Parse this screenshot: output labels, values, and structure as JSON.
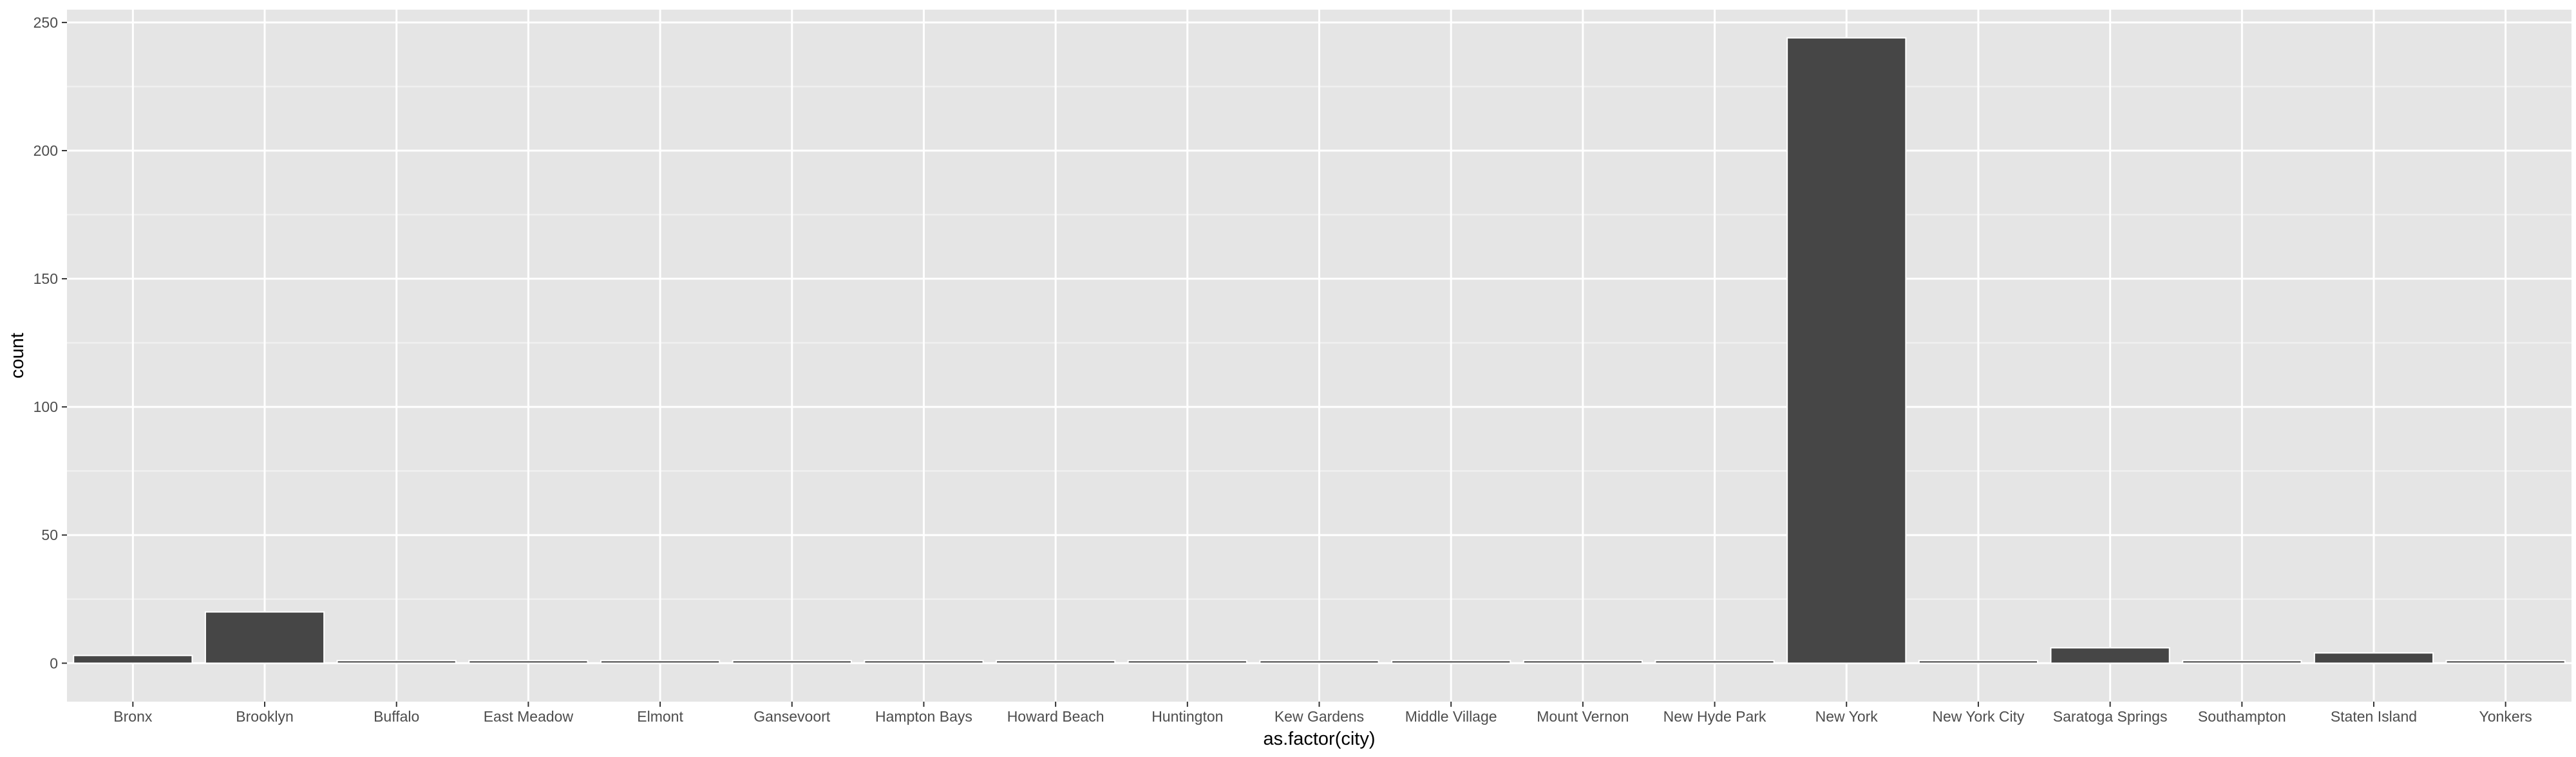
{
  "chart_data": {
    "type": "bar",
    "xlabel": "as.factor(city)",
    "ylabel": "count",
    "ylim": [
      -15,
      255
    ],
    "yticks": [
      0,
      50,
      100,
      150,
      200,
      250
    ],
    "grid": true,
    "categories": [
      "Bronx",
      "Brooklyn",
      "Buffalo",
      "East Meadow",
      "Elmont",
      "Gansevoort",
      "Hampton Bays",
      "Howard Beach",
      "Huntington",
      "Kew Gardens",
      "Middle Village",
      "Mount Vernon",
      "New Hyde Park",
      "New York",
      "New York City",
      "Saratoga Springs",
      "Southampton",
      "Staten Island",
      "Yonkers"
    ],
    "values": [
      3,
      20,
      1,
      1,
      1,
      1,
      1,
      1,
      1,
      1,
      1,
      1,
      1,
      244,
      1,
      6,
      1,
      4,
      1
    ],
    "colors": {
      "panel": "#e5e5e5",
      "grid_major": "#ffffff",
      "grid_minor": "#f2f2f2",
      "bar_fill": "#464646",
      "bar_outline": "#ffffff",
      "tick": "#333333",
      "tick_label": "#4d4d4d"
    }
  }
}
